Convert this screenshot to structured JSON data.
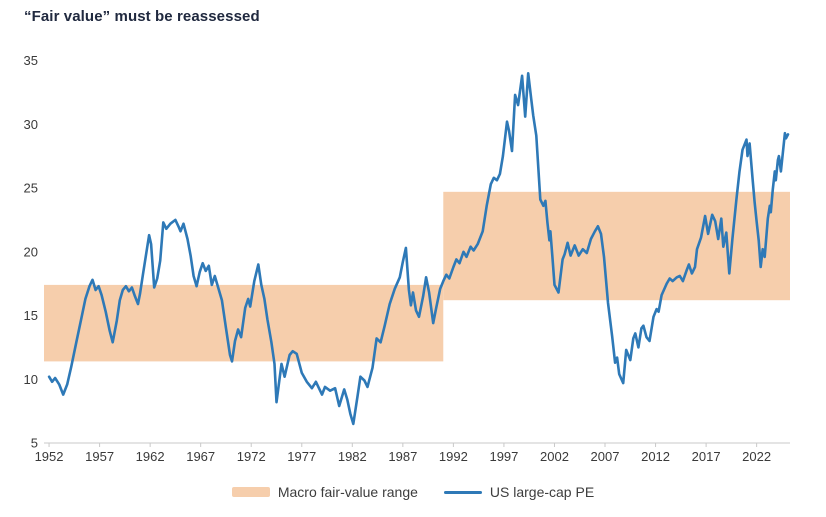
{
  "title": "“Fair value” must be reassessed",
  "colors": {
    "title_text": "#20293f",
    "band_fill": "#f6ceac",
    "line_stroke": "#2e79b7",
    "axis_line": "#c9c9c9",
    "tick_label": "#3a3a3a"
  },
  "legend": {
    "items": [
      {
        "type": "band",
        "label": "Macro fair-value range"
      },
      {
        "type": "line",
        "label": "US large-cap PE"
      }
    ],
    "position": "bottom"
  },
  "chart_data": {
    "type": "line",
    "title": "“Fair value” must be reassessed",
    "xlabel": "",
    "ylabel": "",
    "grid": false,
    "x_axis": {
      "min": 1951.5,
      "max": 2025.3,
      "tick_years": [
        1952,
        1957,
        1962,
        1967,
        1972,
        1977,
        1982,
        1987,
        1992,
        1997,
        2002,
        2007,
        2012,
        2017,
        2022
      ]
    },
    "y_axis": {
      "min": 5,
      "max": 35.5,
      "ticks": [
        5,
        10,
        15,
        20,
        25,
        30,
        35
      ]
    },
    "bands": [
      {
        "name": "Macro fair-value range (pre-1991 regime)",
        "from_year": 1951.5,
        "to_year": 1991,
        "low": 11.4,
        "high": 17.4
      },
      {
        "name": "Macro fair-value range (post-1991 regime)",
        "from_year": 1991,
        "to_year": 2025.3,
        "low": 16.2,
        "high": 24.7
      }
    ],
    "series": [
      {
        "name": "US large-cap PE",
        "points": [
          [
            1952.0,
            10.2
          ],
          [
            1952.3,
            9.8
          ],
          [
            1952.6,
            10.1
          ],
          [
            1953.0,
            9.6
          ],
          [
            1953.4,
            8.8
          ],
          [
            1953.8,
            9.6
          ],
          [
            1954.2,
            11.0
          ],
          [
            1954.7,
            12.9
          ],
          [
            1955.2,
            14.8
          ],
          [
            1955.6,
            16.3
          ],
          [
            1956.0,
            17.3
          ],
          [
            1956.3,
            17.8
          ],
          [
            1956.6,
            17.0
          ],
          [
            1956.9,
            17.3
          ],
          [
            1957.2,
            16.6
          ],
          [
            1957.6,
            15.3
          ],
          [
            1958.0,
            13.8
          ],
          [
            1958.3,
            12.9
          ],
          [
            1958.7,
            14.6
          ],
          [
            1959.0,
            16.2
          ],
          [
            1959.3,
            17.0
          ],
          [
            1959.6,
            17.3
          ],
          [
            1959.9,
            16.9
          ],
          [
            1960.2,
            17.2
          ],
          [
            1960.5,
            16.5
          ],
          [
            1960.8,
            15.9
          ],
          [
            1961.0,
            16.7
          ],
          [
            1961.3,
            18.3
          ],
          [
            1961.6,
            19.8
          ],
          [
            1961.9,
            21.3
          ],
          [
            1962.1,
            20.6
          ],
          [
            1962.4,
            17.2
          ],
          [
            1962.7,
            17.9
          ],
          [
            1963.0,
            19.3
          ],
          [
            1963.3,
            22.3
          ],
          [
            1963.6,
            21.8
          ],
          [
            1964.0,
            22.2
          ],
          [
            1964.5,
            22.5
          ],
          [
            1964.8,
            22.0
          ],
          [
            1965.0,
            21.6
          ],
          [
            1965.3,
            22.2
          ],
          [
            1965.7,
            21.0
          ],
          [
            1966.0,
            19.7
          ],
          [
            1966.3,
            18.1
          ],
          [
            1966.6,
            17.3
          ],
          [
            1966.9,
            18.4
          ],
          [
            1967.2,
            19.1
          ],
          [
            1967.5,
            18.5
          ],
          [
            1967.8,
            18.9
          ],
          [
            1968.1,
            17.4
          ],
          [
            1968.4,
            18.1
          ],
          [
            1968.8,
            17.0
          ],
          [
            1969.1,
            16.2
          ],
          [
            1969.5,
            14.0
          ],
          [
            1969.9,
            11.9
          ],
          [
            1970.1,
            11.4
          ],
          [
            1970.4,
            13.0
          ],
          [
            1970.7,
            13.9
          ],
          [
            1971.0,
            13.3
          ],
          [
            1971.4,
            15.6
          ],
          [
            1971.7,
            16.3
          ],
          [
            1971.9,
            15.7
          ],
          [
            1972.3,
            17.7
          ],
          [
            1972.7,
            19.0
          ],
          [
            1973.0,
            17.4
          ],
          [
            1973.3,
            16.3
          ],
          [
            1973.6,
            14.7
          ],
          [
            1974.0,
            12.9
          ],
          [
            1974.3,
            11.2
          ],
          [
            1974.5,
            8.2
          ],
          [
            1975.0,
            11.2
          ],
          [
            1975.3,
            10.2
          ],
          [
            1975.8,
            11.9
          ],
          [
            1976.1,
            12.2
          ],
          [
            1976.5,
            12.0
          ],
          [
            1977.0,
            10.5
          ],
          [
            1977.5,
            9.8
          ],
          [
            1978.0,
            9.3
          ],
          [
            1978.4,
            9.8
          ],
          [
            1979.0,
            8.8
          ],
          [
            1979.3,
            9.4
          ],
          [
            1979.8,
            9.1
          ],
          [
            1980.3,
            9.3
          ],
          [
            1980.7,
            7.9
          ],
          [
            1981.2,
            9.2
          ],
          [
            1981.5,
            8.4
          ],
          [
            1981.8,
            7.3
          ],
          [
            1982.1,
            6.5
          ],
          [
            1982.5,
            8.6
          ],
          [
            1982.8,
            10.2
          ],
          [
            1983.2,
            9.9
          ],
          [
            1983.5,
            9.4
          ],
          [
            1984.0,
            10.9
          ],
          [
            1984.4,
            13.2
          ],
          [
            1984.8,
            12.9
          ],
          [
            1985.2,
            14.2
          ],
          [
            1985.7,
            15.9
          ],
          [
            1986.2,
            17.1
          ],
          [
            1986.7,
            18.0
          ],
          [
            1987.0,
            19.2
          ],
          [
            1987.3,
            20.3
          ],
          [
            1987.6,
            17.0
          ],
          [
            1987.8,
            15.8
          ],
          [
            1988.0,
            16.8
          ],
          [
            1988.3,
            15.4
          ],
          [
            1988.6,
            14.9
          ],
          [
            1989.0,
            16.5
          ],
          [
            1989.3,
            18.0
          ],
          [
            1989.6,
            16.8
          ],
          [
            1990.0,
            14.4
          ],
          [
            1990.3,
            15.6
          ],
          [
            1990.7,
            17.1
          ],
          [
            1991.0,
            17.7
          ],
          [
            1991.3,
            18.2
          ],
          [
            1991.6,
            17.9
          ],
          [
            1992.0,
            18.8
          ],
          [
            1992.3,
            19.4
          ],
          [
            1992.6,
            19.1
          ],
          [
            1993.0,
            20.0
          ],
          [
            1993.3,
            19.6
          ],
          [
            1993.7,
            20.4
          ],
          [
            1994.0,
            20.1
          ],
          [
            1994.4,
            20.6
          ],
          [
            1994.9,
            21.6
          ],
          [
            1995.3,
            23.6
          ],
          [
            1995.7,
            25.3
          ],
          [
            1996.0,
            25.8
          ],
          [
            1996.3,
            25.6
          ],
          [
            1996.6,
            26.1
          ],
          [
            1996.9,
            27.5
          ],
          [
            1997.3,
            30.2
          ],
          [
            1997.5,
            29.5
          ],
          [
            1997.8,
            27.9
          ],
          [
            1998.1,
            32.3
          ],
          [
            1998.4,
            31.5
          ],
          [
            1998.8,
            33.8
          ],
          [
            1999.1,
            30.6
          ],
          [
            1999.4,
            34.0
          ],
          [
            1999.7,
            32.0
          ],
          [
            1999.9,
            30.7
          ],
          [
            2000.2,
            29.1
          ],
          [
            2000.6,
            24.1
          ],
          [
            2000.9,
            23.6
          ],
          [
            2001.1,
            24.0
          ],
          [
            2001.3,
            22.3
          ],
          [
            2001.5,
            20.9
          ],
          [
            2001.6,
            21.6
          ],
          [
            2001.8,
            19.5
          ],
          [
            2002.0,
            17.4
          ],
          [
            2002.4,
            16.8
          ],
          [
            2002.8,
            19.4
          ],
          [
            2003.0,
            19.8
          ],
          [
            2003.3,
            20.7
          ],
          [
            2003.6,
            19.7
          ],
          [
            2004.0,
            20.5
          ],
          [
            2004.4,
            19.7
          ],
          [
            2004.8,
            20.2
          ],
          [
            2005.2,
            19.9
          ],
          [
            2005.6,
            21.0
          ],
          [
            2006.0,
            21.6
          ],
          [
            2006.3,
            22.0
          ],
          [
            2006.6,
            21.4
          ],
          [
            2006.9,
            19.6
          ],
          [
            2007.3,
            16.0
          ],
          [
            2007.7,
            13.4
          ],
          [
            2008.0,
            11.3
          ],
          [
            2008.2,
            11.7
          ],
          [
            2008.4,
            10.4
          ],
          [
            2008.8,
            9.7
          ],
          [
            2009.1,
            12.3
          ],
          [
            2009.5,
            11.5
          ],
          [
            2009.8,
            13.2
          ],
          [
            2010.0,
            13.6
          ],
          [
            2010.3,
            12.5
          ],
          [
            2010.6,
            14.0
          ],
          [
            2010.8,
            14.2
          ],
          [
            2011.1,
            13.3
          ],
          [
            2011.4,
            13.0
          ],
          [
            2011.8,
            14.9
          ],
          [
            2012.1,
            15.5
          ],
          [
            2012.3,
            15.3
          ],
          [
            2012.6,
            16.6
          ],
          [
            2013.1,
            17.5
          ],
          [
            2013.4,
            17.9
          ],
          [
            2013.7,
            17.7
          ],
          [
            2014.1,
            18.0
          ],
          [
            2014.4,
            18.1
          ],
          [
            2014.7,
            17.7
          ],
          [
            2015.1,
            18.6
          ],
          [
            2015.3,
            19.0
          ],
          [
            2015.6,
            18.3
          ],
          [
            2015.9,
            18.8
          ],
          [
            2016.1,
            20.2
          ],
          [
            2016.5,
            21.1
          ],
          [
            2016.9,
            22.8
          ],
          [
            2017.2,
            21.4
          ],
          [
            2017.6,
            22.9
          ],
          [
            2017.9,
            22.4
          ],
          [
            2018.2,
            21.0
          ],
          [
            2018.5,
            22.6
          ],
          [
            2018.7,
            20.4
          ],
          [
            2019.0,
            21.5
          ],
          [
            2019.3,
            18.3
          ],
          [
            2019.6,
            21.0
          ],
          [
            2020.0,
            24.1
          ],
          [
            2020.3,
            26.3
          ],
          [
            2020.6,
            28.0
          ],
          [
            2021.0,
            28.8
          ],
          [
            2021.1,
            27.5
          ],
          [
            2021.3,
            28.5
          ],
          [
            2021.6,
            25.7
          ],
          [
            2021.8,
            23.9
          ],
          [
            2022.0,
            22.4
          ],
          [
            2022.2,
            20.9
          ],
          [
            2022.4,
            18.8
          ],
          [
            2022.6,
            20.2
          ],
          [
            2022.8,
            19.6
          ],
          [
            2023.1,
            22.6
          ],
          [
            2023.3,
            23.6
          ],
          [
            2023.4,
            23.1
          ],
          [
            2023.6,
            24.9
          ],
          [
            2023.8,
            26.3
          ],
          [
            2023.9,
            25.6
          ],
          [
            2024.1,
            27.2
          ],
          [
            2024.2,
            27.5
          ],
          [
            2024.4,
            26.3
          ],
          [
            2024.8,
            29.3
          ],
          [
            2024.9,
            28.9
          ],
          [
            2025.1,
            29.2
          ]
        ]
      }
    ],
    "legend_position": "bottom"
  }
}
